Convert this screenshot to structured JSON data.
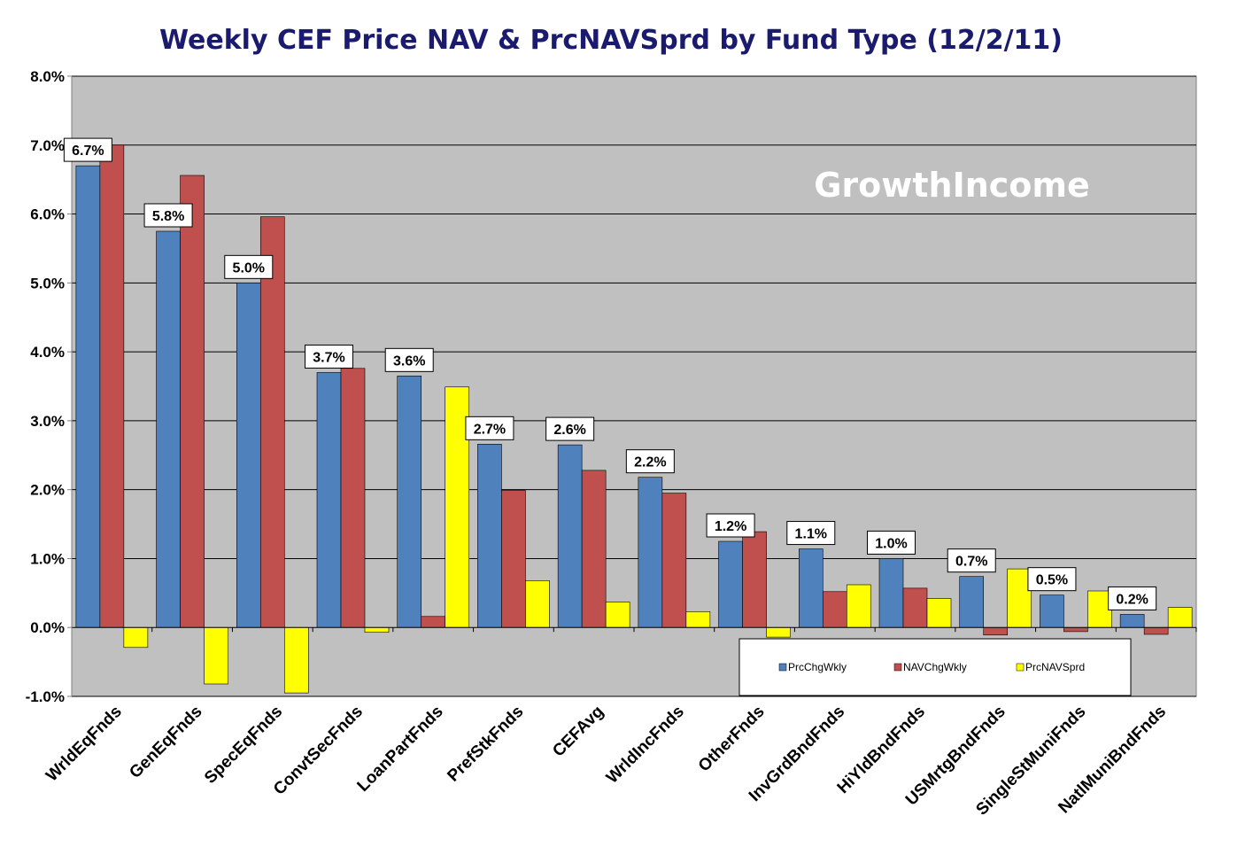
{
  "chart_data": {
    "type": "bar",
    "title": "Weekly CEF Price NAV & PrcNAVSprd by Fund Type  (12/2/11)",
    "watermark": "GrowthIncome",
    "xlabel": "",
    "ylabel": "",
    "ylim": [
      -1.0,
      8.0
    ],
    "ytick_step": 1.0,
    "ytick_labels": [
      "-1.0%",
      "0.0%",
      "1.0%",
      "2.0%",
      "3.0%",
      "4.0%",
      "5.0%",
      "6.0%",
      "7.0%",
      "8.0%"
    ],
    "grid": true,
    "legend_position": "bottom-right",
    "categories": [
      "WrldEqFnds",
      "GenEqFnds",
      "SpecEqFnds",
      "ConvtSecFnds",
      "LoanPartFnds",
      "PrefStkFnds",
      "CEFAvg",
      "WrldIncFnds",
      "OtherFnds",
      "InvGrdBndFnds",
      "HiYldBndFnds",
      "USMrtgBndFnds",
      "SingleStMuniFnds",
      "NatlMuniBndFnds"
    ],
    "series": [
      {
        "name": "PrcChgWkly",
        "color": "#4f81bd",
        "values": [
          6.7,
          5.75,
          5.0,
          3.7,
          3.65,
          2.66,
          2.65,
          2.18,
          1.25,
          1.14,
          1.0,
          0.74,
          0.47,
          0.19
        ]
      },
      {
        "name": "NAVChgWkly",
        "color": "#c0504d",
        "values": [
          7.0,
          6.56,
          5.96,
          3.76,
          0.16,
          1.99,
          2.28,
          1.95,
          1.39,
          0.52,
          0.57,
          -0.11,
          -0.06,
          -0.1
        ]
      },
      {
        "name": "PrcNAVSprd",
        "color": "#ffff00",
        "values": [
          -0.29,
          -0.82,
          -0.95,
          -0.07,
          3.49,
          0.68,
          0.37,
          0.23,
          -0.14,
          0.62,
          0.42,
          0.85,
          0.53,
          0.29
        ]
      }
    ],
    "data_labels": [
      "6.7%",
      "5.8%",
      "5.0%",
      "3.7%",
      "3.6%",
      "2.7%",
      "2.6%",
      "2.2%",
      "1.2%",
      "1.1%",
      "1.0%",
      "0.7%",
      "0.5%",
      "0.2%"
    ]
  }
}
